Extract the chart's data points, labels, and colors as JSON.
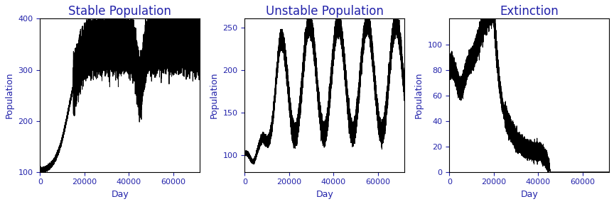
{
  "titles": [
    "Stable Population",
    "Unstable Population",
    "Extinction"
  ],
  "title_color": "#2222AA",
  "axis_label_color": "#2222AA",
  "xlabel": "Day",
  "ylabel": "Population",
  "xlim": [
    0,
    72000
  ],
  "xticks": [
    0,
    20000,
    40000,
    60000
  ],
  "stable_ylim": [
    100,
    400
  ],
  "stable_yticks": [
    100,
    200,
    300,
    400
  ],
  "unstable_ylim": [
    80,
    260
  ],
  "unstable_yticks": [
    100,
    150,
    200,
    250
  ],
  "extinction_ylim": [
    0,
    120
  ],
  "extinction_yticks": [
    0,
    20,
    40,
    60,
    80,
    100
  ],
  "line_color": "#000000",
  "line_width": 0.7,
  "background_color": "#ffffff",
  "title_fontsize": 12,
  "label_fontsize": 9,
  "tick_fontsize": 8
}
